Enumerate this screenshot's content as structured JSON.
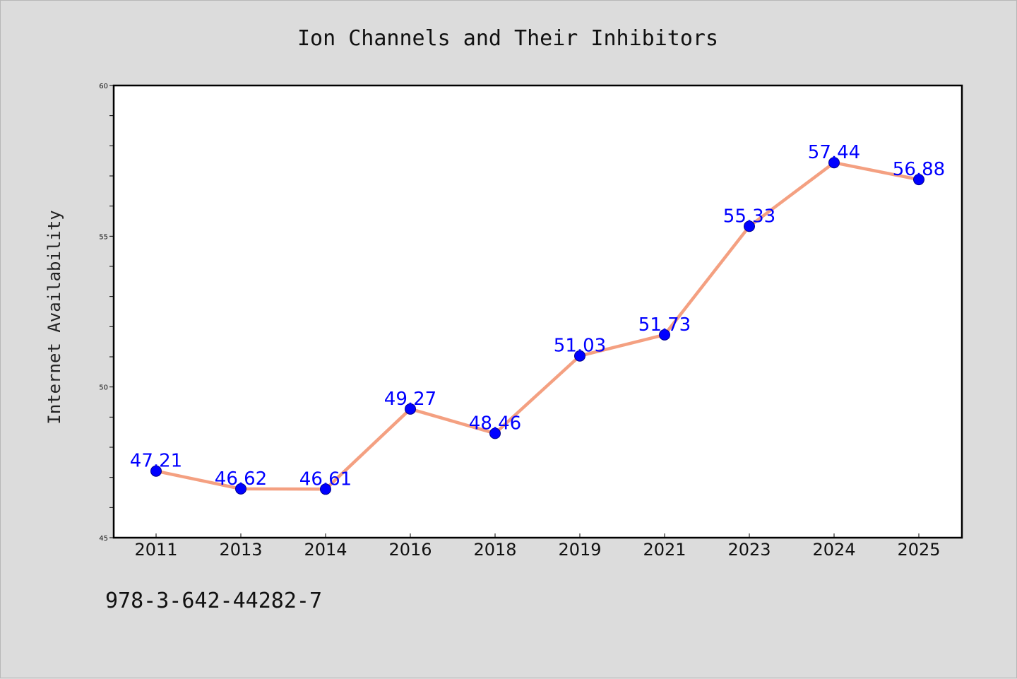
{
  "chart_data": {
    "type": "line",
    "title": "Ion Channels and Their Inhibitors",
    "xlabel": "",
    "ylabel": "Internet Availability",
    "categories": [
      "2011",
      "2013",
      "2014",
      "2016",
      "2018",
      "2019",
      "2021",
      "2023",
      "2024",
      "2025"
    ],
    "values": [
      47.21,
      46.62,
      46.61,
      49.27,
      48.46,
      51.03,
      51.73,
      55.33,
      57.44,
      56.88
    ],
    "data_labels": [
      "47.21",
      "46.62",
      "46.61",
      "49.27",
      "48.46",
      "51.03",
      "51.73",
      "55.33",
      "57.44",
      "56.88"
    ],
    "ylim": [
      45,
      60
    ],
    "y_tick_labels": [
      "45",
      "50",
      "55",
      "60"
    ],
    "grid": false,
    "line_color": "#f4a081",
    "marker_color": "#0000ff",
    "label_color": "#0000ff"
  },
  "footer": {
    "code": "978-3-642-44282-7"
  }
}
